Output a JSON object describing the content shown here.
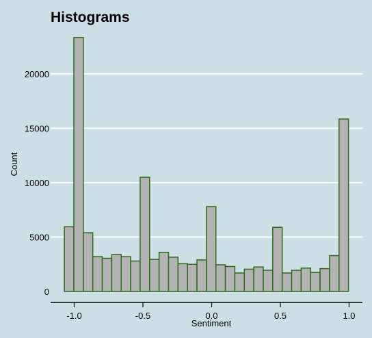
{
  "chart_data": {
    "type": "bar",
    "title": "Histograms",
    "xlabel": "Sentiment",
    "ylabel": "Count",
    "xlim": [
      -1.15,
      1.1
    ],
    "ylim": [
      0,
      24000
    ],
    "xticks": [
      -1.0,
      -0.5,
      0.0,
      0.5,
      1.0
    ],
    "xtick_labels": [
      "-1.0",
      "-0.5",
      "0.0",
      "0.5",
      "1.0"
    ],
    "yticks": [
      0,
      5000,
      10000,
      15000,
      20000
    ],
    "ytick_labels": [
      "0",
      "5000",
      "10000",
      "15000",
      "20000"
    ],
    "grid": "horizontal",
    "colors": {
      "background": "#cddfe6",
      "bar_fill": "#b3b3b3",
      "bar_edge": "#2d6a1a",
      "grid": "#ffffff"
    },
    "bins_start": -1.0714,
    "bin_width": 0.0689,
    "values": [
      5950,
      23350,
      5400,
      3200,
      3050,
      3400,
      3200,
      2800,
      10500,
      2950,
      3600,
      3150,
      2550,
      2500,
      2900,
      7800,
      2450,
      2300,
      1700,
      2050,
      2250,
      1950,
      5900,
      1700,
      1950,
      2150,
      1750,
      2100,
      3300,
      15850
    ]
  }
}
